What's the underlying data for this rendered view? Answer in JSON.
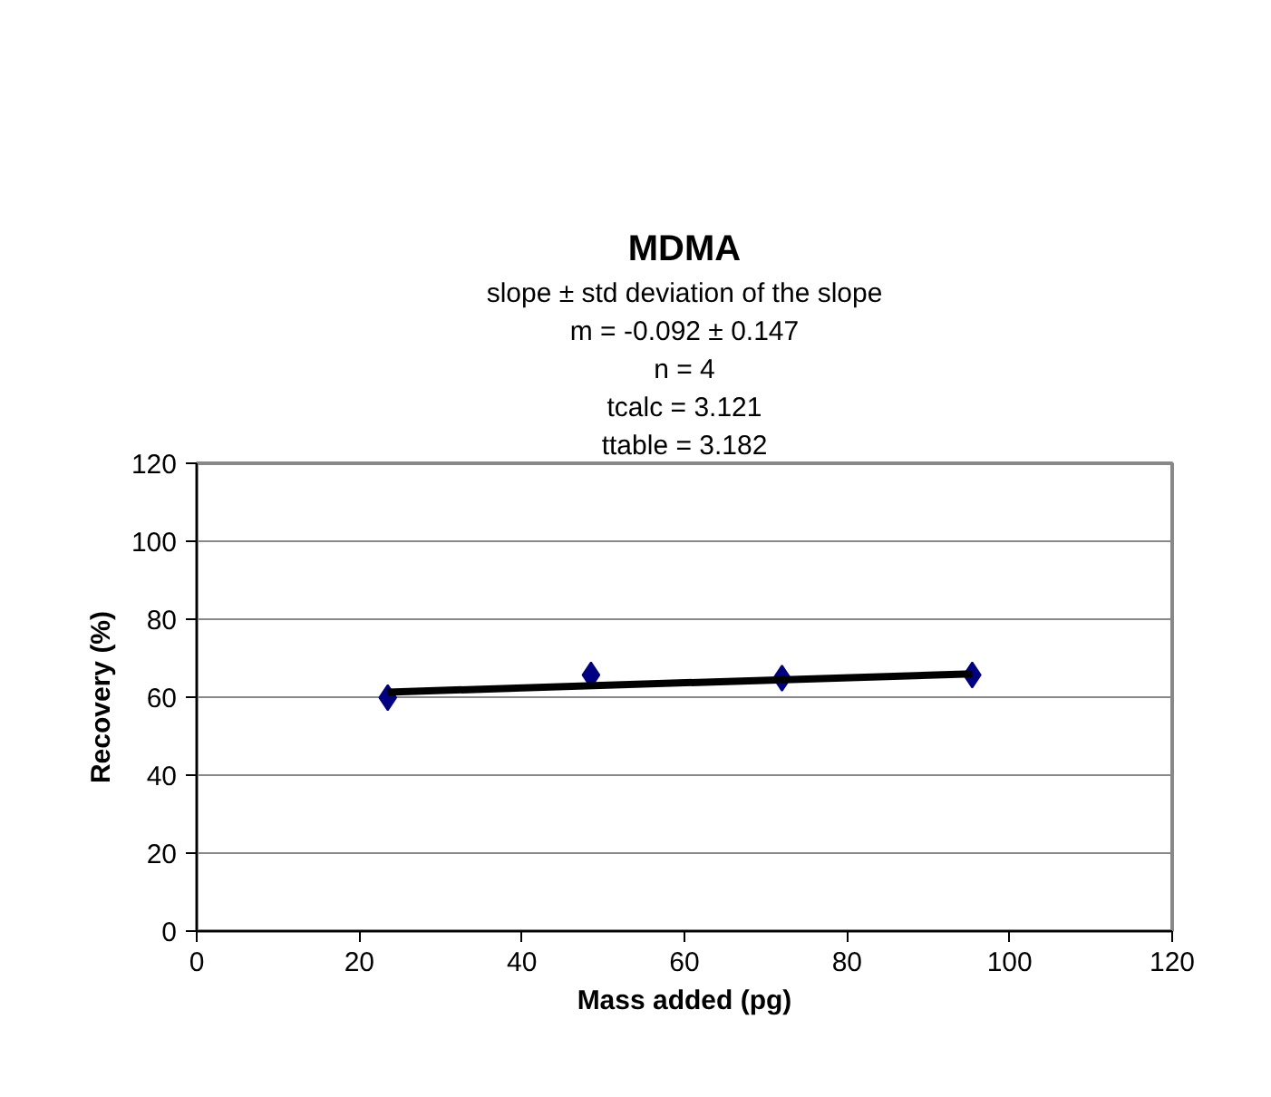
{
  "chart_data": {
    "type": "scatter",
    "title": "MDMA",
    "annotations": [
      "slope ± std deviation of the slope",
      "m = -0.092 ± 0.147",
      "n = 4",
      "tcalc = 3.121",
      "ttable = 3.182"
    ],
    "xlabel": "Mass added (pg)",
    "ylabel": "Recovery (%)",
    "series": [
      {
        "color": "#000080",
        "marker": "diamond",
        "x": [
          23.5,
          48.5,
          72,
          95.4
        ],
        "values": [
          59.9,
          65.7,
          64.9,
          65.7
        ]
      },
      {
        "type": "line",
        "color": "#000000",
        "marker": "none",
        "line_style": "solid",
        "x": [
          23.5,
          95.4
        ],
        "values": [
          61.3,
          66.0
        ]
      }
    ],
    "xlim": [
      0,
      120
    ],
    "xticks": [
      0,
      20,
      40,
      60,
      80,
      100,
      120
    ],
    "ylim": [
      0,
      120
    ],
    "yticks": [
      0,
      20,
      40,
      60,
      80,
      100,
      120
    ],
    "grid": "y"
  }
}
